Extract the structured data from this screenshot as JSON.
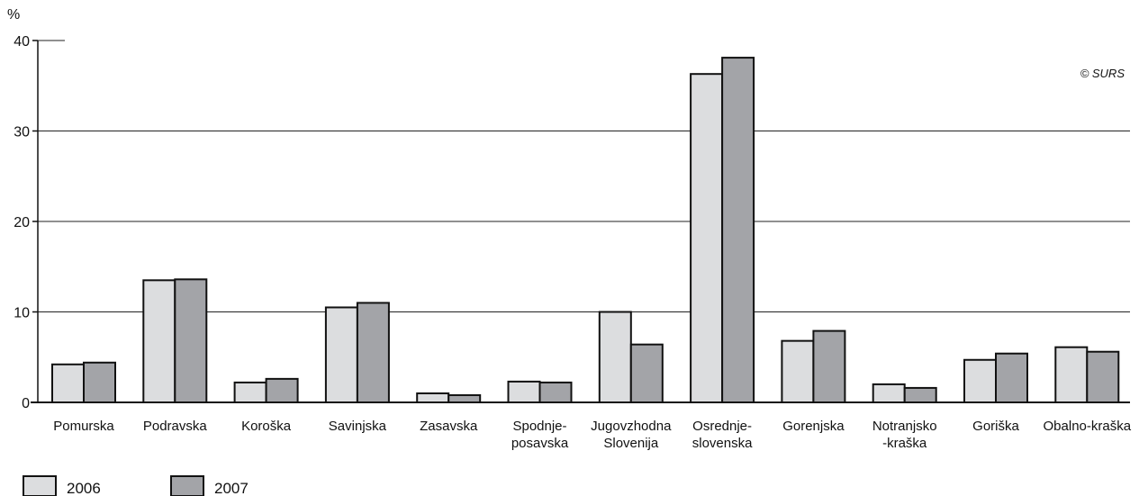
{
  "chart_data": {
    "type": "bar",
    "ylabel": "%",
    "ylim": [
      0,
      40
    ],
    "yticks": [
      "0",
      "10",
      "20",
      "30",
      "40"
    ],
    "grid": true,
    "legend_position": "bottom-left",
    "copyright": "© SURS",
    "categories": [
      [
        "Pomurska"
      ],
      [
        "Podravska"
      ],
      [
        "Koroška"
      ],
      [
        "Savinjska"
      ],
      [
        "Zasavska"
      ],
      [
        "Spodnje-",
        "posavska"
      ],
      [
        "Jugovzhodna",
        "Slovenija"
      ],
      [
        "Osrednje-",
        "slovenska"
      ],
      [
        "Gorenjska"
      ],
      [
        "Notranjsko",
        "-kraška"
      ],
      [
        "Goriška"
      ],
      [
        "Obalno-kraška"
      ]
    ],
    "series": [
      {
        "name": "2006",
        "color": "#dcdddf",
        "values": [
          4.2,
          13.5,
          2.2,
          10.5,
          1.0,
          2.3,
          10.0,
          36.3,
          6.8,
          2.0,
          4.7,
          6.1
        ]
      },
      {
        "name": "2007",
        "color": "#a3a4a8",
        "values": [
          4.4,
          13.6,
          2.6,
          11.0,
          0.8,
          2.2,
          6.4,
          38.1,
          7.9,
          1.6,
          5.4,
          5.6
        ]
      }
    ]
  }
}
